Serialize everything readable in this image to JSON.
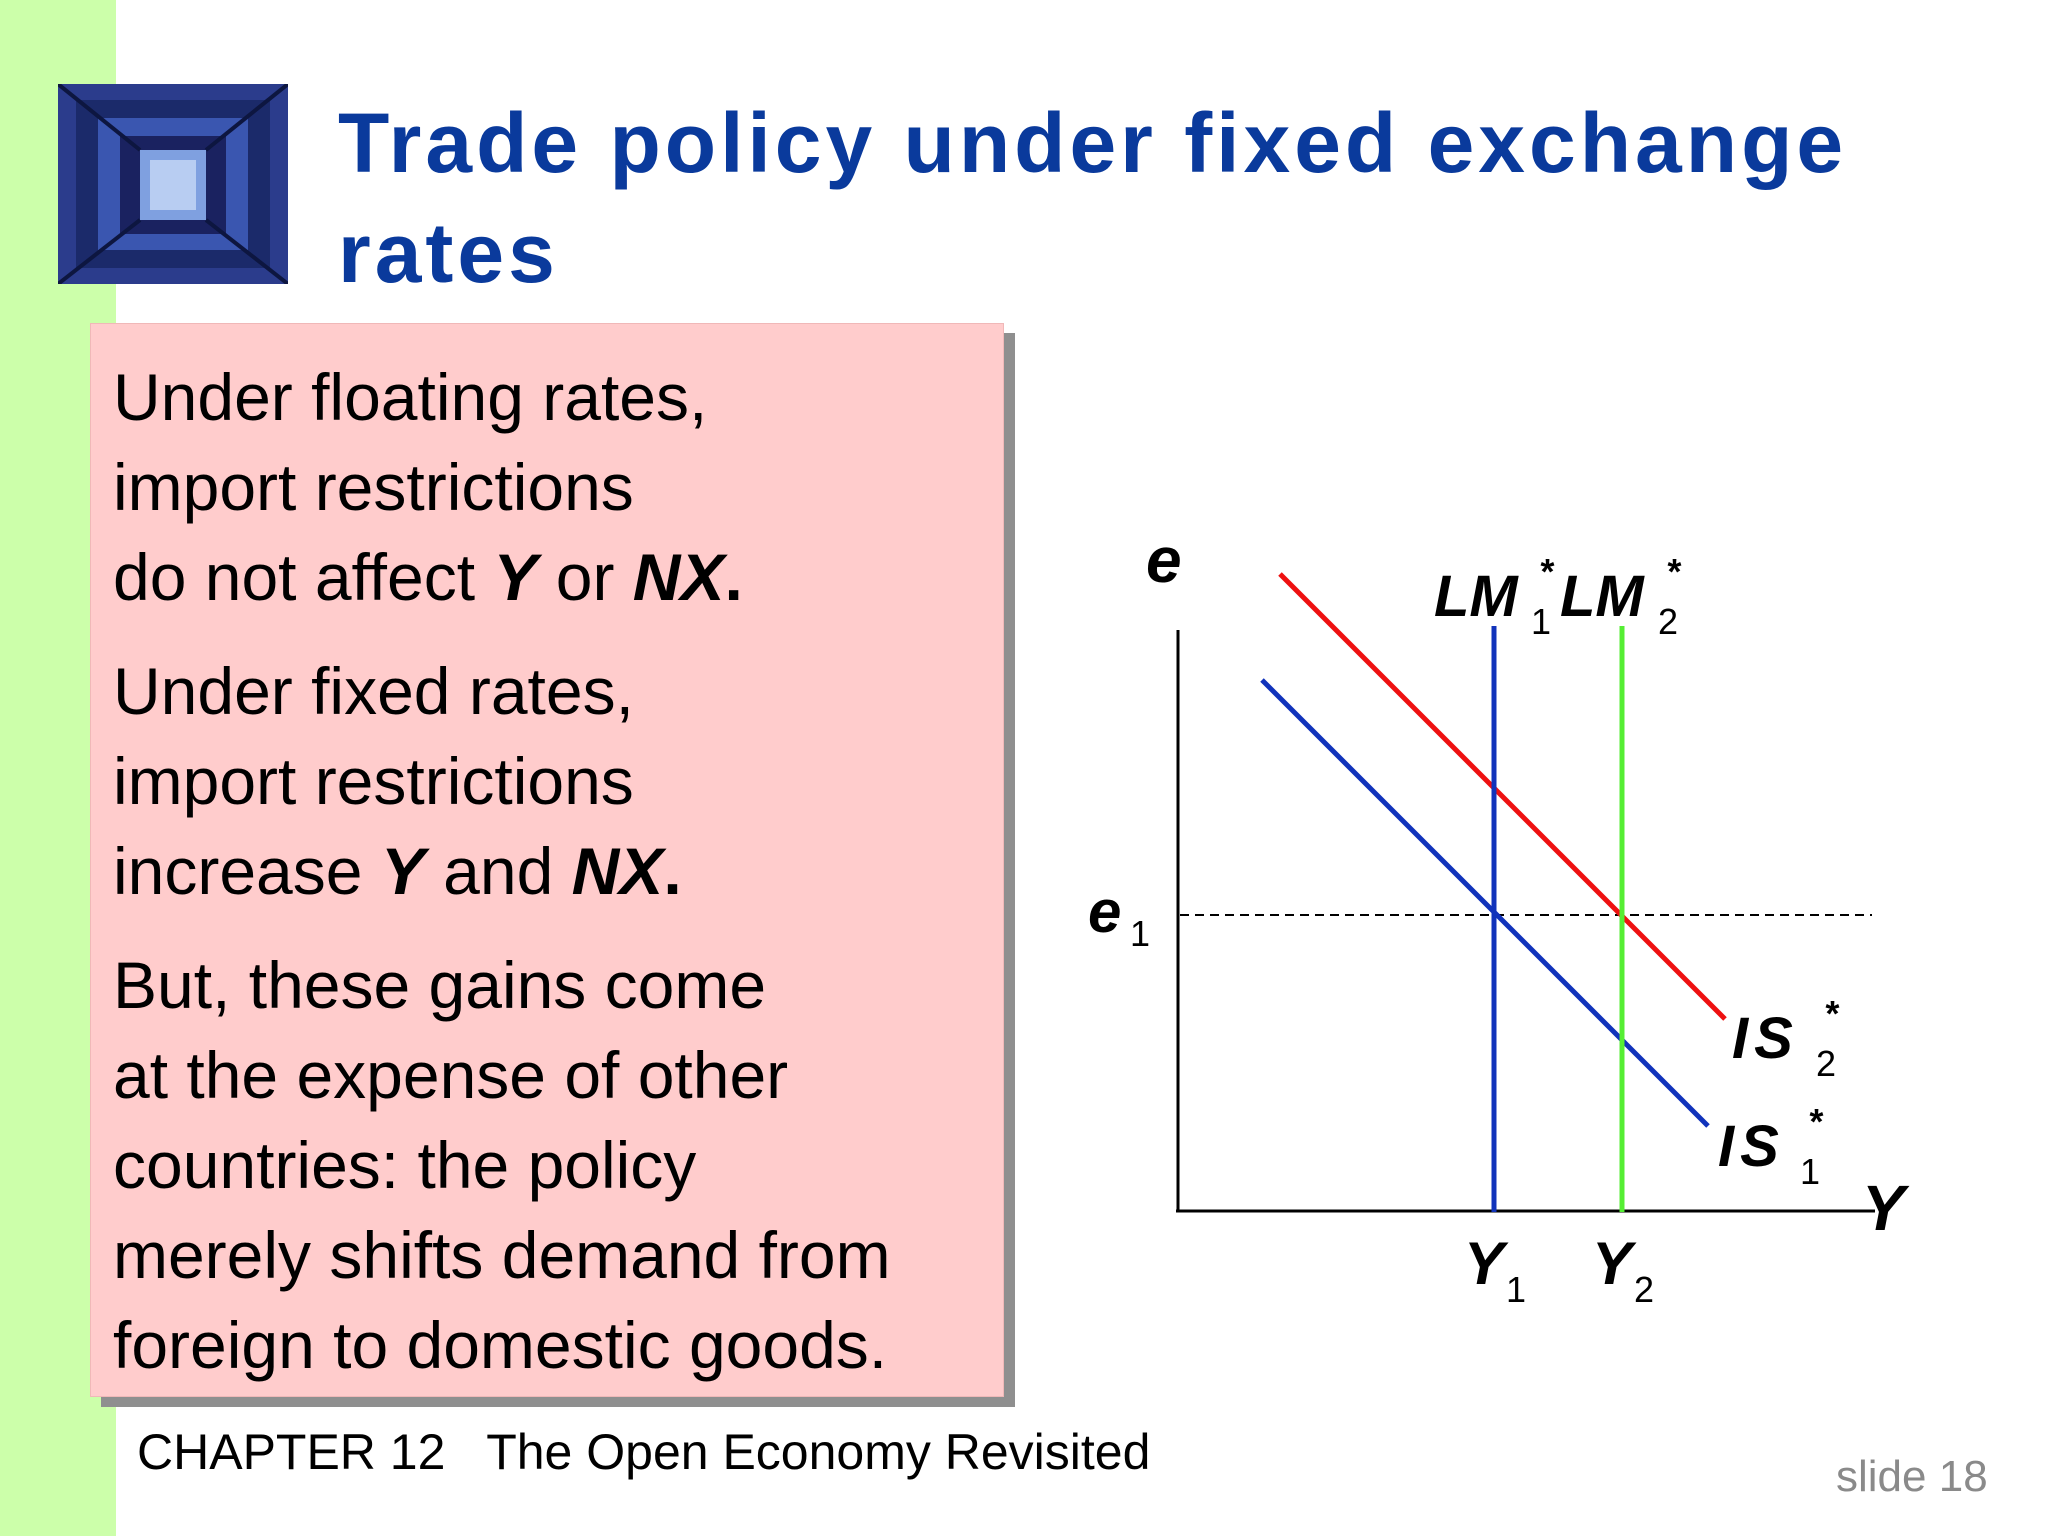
{
  "slide": {
    "title_line1": "Trade policy under fixed exchange",
    "title_line2": "rates",
    "footer_chapter": "CHAPTER 12   The Open Economy Revisited",
    "footer_slide": "slide 18"
  },
  "textbox": {
    "para1": {
      "l1": "Under floating rates,",
      "l2": "import restrictions",
      "l3a": "do not affect ",
      "l3b": "Y",
      "l3c": " or ",
      "l3d": "NX",
      "l3e": "."
    },
    "para2": {
      "l1": "Under fixed rates,",
      "l2": "import restrictions",
      "l3a": "increase ",
      "l3b": "Y",
      "l3c": " and ",
      "l3d": "NX",
      "l3e": "."
    },
    "para3": {
      "l1": "But, these gains come",
      "l2": "at the expense of other",
      "l3": "countries:  the policy",
      "l4": "merely shifts demand from",
      "l5": "foreign to domestic goods."
    }
  },
  "diagram": {
    "y_axis_label": "e",
    "x_axis_label": "Y",
    "e1_main": "e",
    "e1_sub": "1",
    "lm1_main": "LM",
    "lm1_sub": "1",
    "lm1_star": "*",
    "lm2_main": "LM",
    "lm2_sub": "2",
    "lm2_star": "*",
    "is1_main": "IS",
    "is1_sub": "1",
    "is1_star": "*",
    "is2_main": "IS",
    "is2_sub": "2",
    "is2_star": "*",
    "y1_main": "Y",
    "y1_sub": "1",
    "y2_main": "Y",
    "y2_sub": "2",
    "colors": {
      "lm1": "#1133bb",
      "lm2": "#55ee33",
      "is1": "#1133bb",
      "is2": "#ee1111"
    }
  }
}
